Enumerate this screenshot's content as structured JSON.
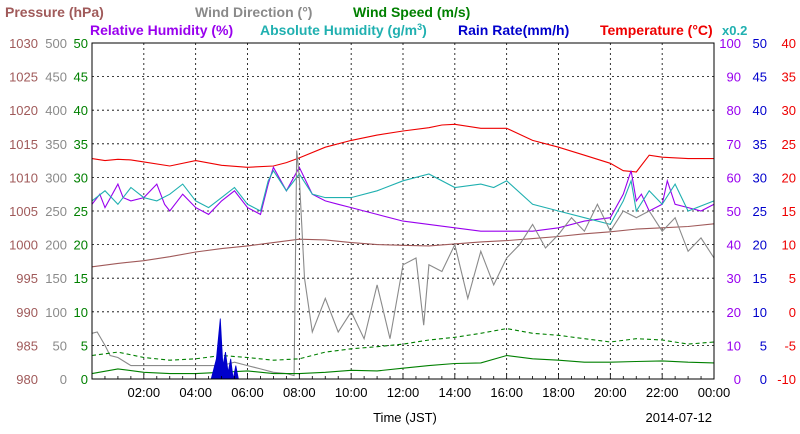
{
  "chart_data": {
    "type": "line",
    "date": "2014-07-12",
    "xlabel": "Time (JST)",
    "x_ticks": [
      "02:00",
      "04:00",
      "06:00",
      "08:00",
      "10:00",
      "12:00",
      "14:00",
      "16:00",
      "18:00",
      "20:00",
      "22:00",
      "00:00"
    ],
    "x_range_hours": [
      0,
      24
    ],
    "absolute_humidity_scale_note": "x0.2",
    "grid": true,
    "legend_row1": [
      {
        "key": "pressure",
        "label": "Pressure (hPa)",
        "color": "#a05a5a"
      },
      {
        "key": "winddir",
        "label": "Wind Direction (°)",
        "color": "#8a8a8a"
      },
      {
        "key": "windspeed",
        "label": "Wind Speed (m/s)",
        "color": "#008000"
      }
    ],
    "legend_row2": [
      {
        "key": "rh",
        "label": "Relative Humidity (%)",
        "color": "#9900ee"
      },
      {
        "key": "ah",
        "label": "Absolute Humidity (g/m",
        "sup": "3",
        "close": ")",
        "color": "#20b0b0"
      },
      {
        "key": "rain",
        "label": "Rain Rate(mm/h)",
        "color": "#0000cc"
      },
      {
        "key": "temp",
        "label": "Temperature (°C)",
        "color": "#ee0000"
      }
    ],
    "axes": {
      "pressure": {
        "color": "#a05a5a",
        "ylim": [
          980,
          1030
        ],
        "ticks": [
          980,
          985,
          990,
          995,
          1000,
          1005,
          1010,
          1015,
          1020,
          1025,
          1030
        ]
      },
      "winddir": {
        "color": "#8a8a8a",
        "ylim": [
          0,
          500
        ],
        "ticks": [
          0,
          50,
          100,
          150,
          200,
          250,
          300,
          350,
          400,
          450,
          500
        ]
      },
      "windspeed": {
        "color": "#008000",
        "ylim": [
          0,
          50
        ],
        "ticks": [
          0,
          5,
          10,
          15,
          20,
          25,
          30,
          35,
          40,
          45,
          50
        ]
      },
      "rh": {
        "color": "#9900ee",
        "ylim": [
          0,
          100
        ],
        "ticks": [
          0,
          10,
          20,
          30,
          40,
          50,
          60,
          70,
          80,
          90,
          100
        ]
      },
      "rain": {
        "color": "#0000cc",
        "ylim": [
          0,
          50
        ],
        "ticks": [
          0,
          5,
          10,
          15,
          20,
          25,
          30,
          35,
          40,
          45,
          50
        ]
      },
      "temp": {
        "color": "#ee0000",
        "ylim": [
          -10,
          40
        ],
        "ticks": [
          -10,
          -5,
          0,
          5,
          10,
          15,
          20,
          25,
          30,
          35,
          40
        ]
      }
    },
    "series": [
      {
        "name": "Temperature (°C)",
        "axis": "temp",
        "color": "#ee0000",
        "x": [
          0,
          0.5,
          1,
          1.5,
          2,
          3,
          4,
          5,
          6,
          7,
          7.5,
          8,
          9,
          10,
          11,
          12,
          13,
          13.5,
          14,
          15,
          16,
          17,
          18,
          19,
          20,
          20.5,
          21,
          21.5,
          22,
          23,
          24
        ],
        "y": [
          22.8,
          22.5,
          22.7,
          22.6,
          22.3,
          21.7,
          22.5,
          21.8,
          21.5,
          21.7,
          22.2,
          22.9,
          24.5,
          25.5,
          26.3,
          26.9,
          27.4,
          27.8,
          27.9,
          27.3,
          27.3,
          25.5,
          24.5,
          23.3,
          22.1,
          21.0,
          20.8,
          23.3,
          23.0,
          22.8,
          22.8
        ]
      },
      {
        "name": "Relative Humidity (%)",
        "axis": "rh",
        "color": "#9900ee",
        "x": [
          0,
          0.3,
          0.5,
          1,
          1.2,
          1.5,
          2,
          2.5,
          2.8,
          3,
          3.5,
          4,
          4.5,
          5,
          5.5,
          6,
          6.5,
          6.8,
          7,
          7.5,
          8,
          8.5,
          9,
          9.5,
          10,
          11,
          12,
          13,
          14,
          15,
          16,
          17,
          18,
          19,
          20,
          20.5,
          20.8,
          21,
          21.2,
          21.5,
          22,
          22.2,
          22.5,
          23,
          23.5,
          24
        ],
        "y": [
          52,
          55,
          51,
          58,
          54,
          53,
          54,
          58,
          52,
          50,
          55,
          51,
          49,
          53,
          56,
          51,
          49,
          58,
          63,
          56,
          63,
          55,
          53,
          52,
          51,
          49,
          47,
          46,
          45,
          44,
          44,
          44,
          45,
          47,
          48,
          55,
          62,
          53,
          55,
          50,
          52,
          59,
          52,
          51,
          50,
          52
        ]
      },
      {
        "name": "Absolute Humidity (g/m³)",
        "axis": "rh",
        "color": "#20b0b0",
        "x": [
          0,
          0.5,
          1,
          1.5,
          2,
          2.5,
          3,
          3.5,
          4,
          4.5,
          5,
          5.5,
          6,
          6.5,
          6.8,
          7,
          7.5,
          8,
          8.5,
          9,
          10,
          11,
          12,
          13,
          14,
          15,
          15.5,
          16,
          17,
          18,
          19,
          20,
          20.5,
          20.8,
          21,
          21.5,
          22,
          22.5,
          23,
          24
        ],
        "y": [
          53,
          56,
          52,
          57,
          54,
          53,
          55,
          58,
          53,
          51,
          54,
          57,
          52,
          50,
          59,
          62,
          56,
          61,
          55,
          54,
          54,
          56,
          59,
          61,
          57,
          58,
          57,
          59,
          52,
          50,
          48,
          46,
          53,
          59,
          50,
          56,
          52,
          58,
          50,
          53
        ]
      },
      {
        "name": "Pressure (hPa)",
        "axis": "pressure",
        "color": "#a05a5a",
        "x": [
          0,
          1,
          2,
          3,
          4,
          5,
          6,
          7,
          8,
          9,
          10,
          11,
          12,
          13,
          14,
          15,
          16,
          17,
          18,
          19,
          20,
          21,
          22,
          23,
          24
        ],
        "y": [
          996.7,
          997.2,
          997.6,
          998.2,
          998.9,
          999.4,
          999.8,
          1000.3,
          1000.8,
          1000.7,
          1000.3,
          1000.0,
          999.9,
          999.8,
          1000.1,
          1000.4,
          1000.6,
          1000.9,
          1001.2,
          1001.6,
          1001.9,
          1002.3,
          1002.5,
          1002.7,
          1003.1
        ]
      },
      {
        "name": "Wind Direction (°)",
        "axis": "winddir",
        "color": "#8a8a8a",
        "x": [
          0,
          0.2,
          0.5,
          0.7,
          1,
          1.5,
          2,
          3,
          4,
          5,
          5.5,
          6,
          6.5,
          7,
          7.5,
          7.8,
          7.9,
          8.0,
          8.2,
          8.5,
          9,
          9.5,
          10,
          10.5,
          11,
          11.5,
          12,
          12.5,
          12.8,
          13,
          13.5,
          14,
          14.5,
          15,
          15.5,
          16,
          16.5,
          17,
          17.5,
          18,
          18.5,
          19,
          19.5,
          20,
          20.5,
          21,
          21.5,
          22,
          22.5,
          23,
          23.5,
          24
        ],
        "y": [
          68,
          70,
          50,
          35,
          32,
          20,
          20,
          20,
          20,
          20,
          25,
          20,
          15,
          10,
          8,
          5,
          340,
          300,
          150,
          70,
          120,
          70,
          100,
          60,
          140,
          60,
          170,
          180,
          80,
          170,
          160,
          200,
          120,
          190,
          140,
          180,
          200,
          230,
          195,
          215,
          240,
          220,
          260,
          220,
          250,
          240,
          250,
          220,
          240,
          190,
          210,
          180
        ]
      },
      {
        "name": "Wind Speed (m/s)",
        "axis": "windspeed",
        "color": "#008000",
        "x": [
          0,
          1,
          2,
          3,
          4,
          5,
          6,
          7,
          8,
          9,
          10,
          11,
          12,
          13,
          14,
          15,
          16,
          17,
          18,
          19,
          20,
          21,
          22,
          23,
          24
        ],
        "y": [
          0.8,
          1.5,
          1.0,
          0.8,
          0.8,
          1.0,
          1.2,
          0.8,
          0.8,
          1.0,
          1.3,
          1.2,
          1.6,
          2.0,
          2.3,
          2.4,
          3.5,
          3.0,
          2.8,
          2.5,
          2.5,
          2.6,
          2.7,
          2.5,
          2.4
        ]
      },
      {
        "name": "Wind Speed (m/s) gust",
        "axis": "windspeed",
        "color": "#008000",
        "dashed": true,
        "x": [
          0,
          1,
          2,
          3,
          4,
          5,
          6,
          7,
          8,
          9,
          10,
          11,
          12,
          13,
          14,
          15,
          16,
          17,
          18,
          19,
          20,
          21,
          22,
          23,
          24
        ],
        "y": [
          3.5,
          4.0,
          3.2,
          2.8,
          3.0,
          3.5,
          3.2,
          2.8,
          3.0,
          4.0,
          4.5,
          4.8,
          5.2,
          5.8,
          6.2,
          6.8,
          7.5,
          6.8,
          6.5,
          6.0,
          5.5,
          6.0,
          5.8,
          5.2,
          5.5
        ]
      },
      {
        "name": "Rain Rate(mm/h)",
        "axis": "rain",
        "color": "#0000cc",
        "fill": true,
        "x": [
          4.6,
          4.8,
          4.95,
          5.05,
          5.15,
          5.25,
          5.35,
          5.45,
          5.55,
          5.65,
          5.75
        ],
        "y": [
          0,
          3,
          9,
          2,
          4,
          1,
          3,
          0,
          2,
          0,
          0
        ]
      }
    ]
  }
}
